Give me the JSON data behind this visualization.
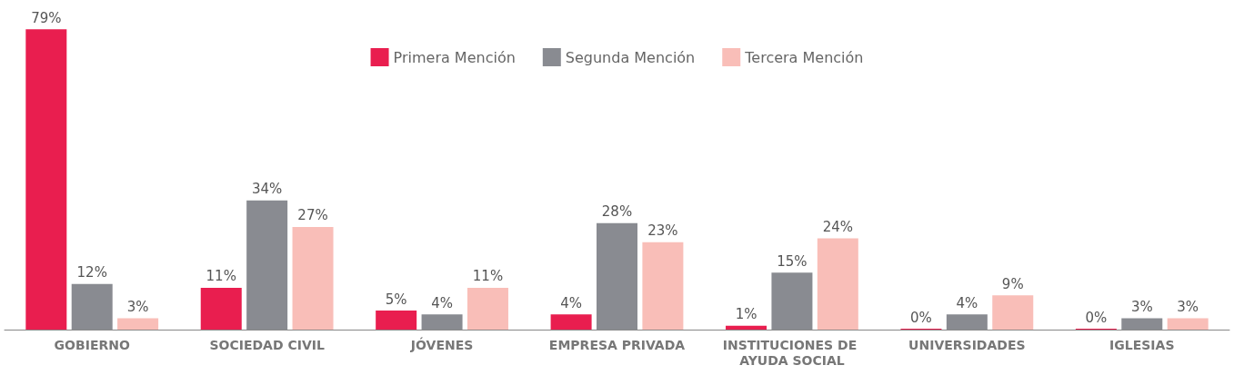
{
  "chart_data": {
    "type": "bar",
    "categories": [
      "GOBIERNO",
      "SOCIEDAD CIVIL",
      "JÓVENES",
      "EMPRESA PRIVADA",
      "INSTITUCIONES DE AYUDA SOCIAL",
      "UNIVERSIDADES",
      "IGLESIAS"
    ],
    "series": [
      {
        "name": "Primera Mención",
        "color": "#e91e4f",
        "values": [
          79,
          11,
          5,
          4,
          1,
          0,
          0
        ],
        "value_labels": [
          "79%",
          "11%",
          "5%",
          "4%",
          "1%",
          "0%",
          "0%"
        ]
      },
      {
        "name": "Segunda Mención",
        "color": "#898b91",
        "values": [
          12,
          34,
          4,
          28,
          15,
          4,
          3
        ],
        "value_labels": [
          "12%",
          "34%",
          "4%",
          "28%",
          "15%",
          "4%",
          "3%"
        ]
      },
      {
        "name": "Tercera Mención",
        "color": "#f9beb8",
        "values": [
          3,
          27,
          11,
          23,
          24,
          9,
          3
        ],
        "value_labels": [
          "3%",
          "27%",
          "11%",
          "23%",
          "24%",
          "9%",
          "3%"
        ]
      }
    ],
    "legend": "top"
  }
}
